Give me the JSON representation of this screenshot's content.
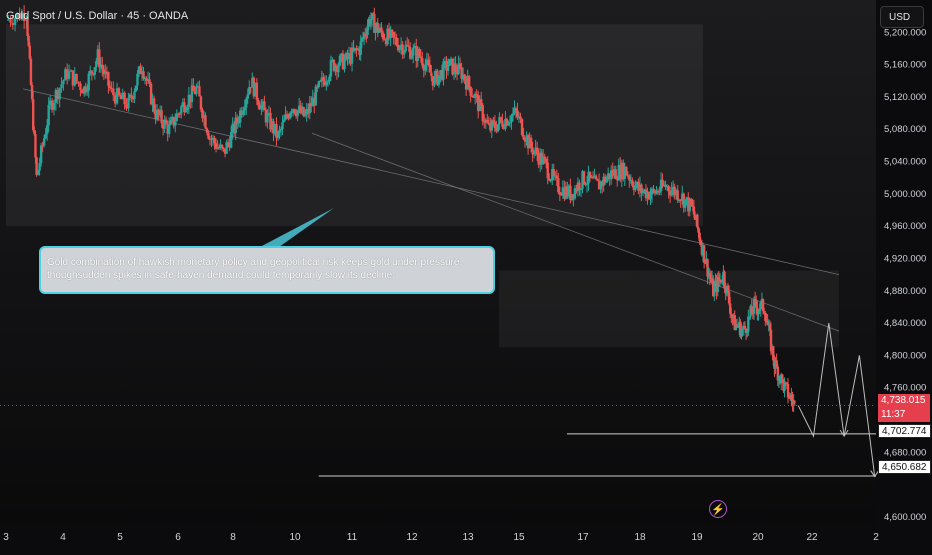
{
  "header": {
    "title": "Gold Spot / U.S. Dollar · 45 · OANDA",
    "currency_button": "USD"
  },
  "annotation": {
    "text_line1": "Gold combination of hawkish monetary policy and geopolitical risk keeps gold under pressure,",
    "text_line2": "thoughsudden spikes in safe-haven demand could temporarily slow its decline."
  },
  "price_badges": {
    "current_price": "4,738.015",
    "countdown": "11:37",
    "target_1": "4,702.774",
    "target_2": "4,650.682"
  },
  "colors": {
    "up": "#26a69a",
    "down": "#ef5350",
    "current_badge": "#e53f4e",
    "annotation_border": "#4dd0e1",
    "event_icon": "#b24fc9"
  },
  "icons": {
    "event": "lightning-icon"
  },
  "chart_data": {
    "type": "candlestick",
    "title": "Gold Spot / U.S. Dollar · 45 · OANDA",
    "y_axis": {
      "ticks": [
        5200,
        5160,
        5120,
        5080,
        5040,
        5000,
        4960,
        4920,
        4880,
        4840,
        4800,
        4760,
        4680,
        4600
      ],
      "tick_labels": [
        "5,200.000",
        "5,160.000",
        "5,120.000",
        "5,080.000",
        "5,040.000",
        "5,000.000",
        "4,960.000",
        "4,920.000",
        "4,880.000",
        "4,840.000",
        "4,800.000",
        "4,760.000",
        "4,680.000",
        "4,600.000"
      ],
      "range": [
        4590,
        5240
      ]
    },
    "x_axis": {
      "ticks": [
        "3",
        "4",
        "5",
        "6",
        "8",
        "10",
        "11",
        "12",
        "13",
        "15",
        "17",
        "18",
        "19",
        "20",
        "22",
        "2"
      ]
    },
    "price_path": [
      [
        0.0,
        5215
      ],
      [
        0.6,
        5225
      ],
      [
        0.9,
        5020
      ],
      [
        1.3,
        5110
      ],
      [
        1.8,
        5150
      ],
      [
        2.3,
        5130
      ],
      [
        2.7,
        5170
      ],
      [
        3.1,
        5125
      ],
      [
        3.6,
        5110
      ],
      [
        4.0,
        5160
      ],
      [
        4.4,
        5100
      ],
      [
        4.8,
        5080
      ],
      [
        5.2,
        5110
      ],
      [
        5.6,
        5130
      ],
      [
        6.0,
        5070
      ],
      [
        6.4,
        5050
      ],
      [
        6.8,
        5090
      ],
      [
        7.2,
        5140
      ],
      [
        7.6,
        5100
      ],
      [
        8.0,
        5070
      ],
      [
        8.4,
        5110
      ],
      [
        8.8,
        5095
      ],
      [
        9.2,
        5130
      ],
      [
        9.6,
        5160
      ],
      [
        10.0,
        5165
      ],
      [
        10.4,
        5180
      ],
      [
        10.7,
        5218
      ],
      [
        11.0,
        5200
      ],
      [
        11.4,
        5190
      ],
      [
        11.8,
        5180
      ],
      [
        12.2,
        5170
      ],
      [
        12.6,
        5140
      ],
      [
        13.0,
        5160
      ],
      [
        13.4,
        5150
      ],
      [
        13.8,
        5120
      ],
      [
        14.2,
        5080
      ],
      [
        14.6,
        5090
      ],
      [
        15.0,
        5100
      ],
      [
        15.4,
        5060
      ],
      [
        15.8,
        5040
      ],
      [
        16.2,
        5010
      ],
      [
        16.6,
        5000
      ],
      [
        17.0,
        5020
      ],
      [
        17.4,
        5010
      ],
      [
        17.8,
        5025
      ],
      [
        18.2,
        5030
      ],
      [
        18.6,
        5005
      ],
      [
        19.0,
        5000
      ],
      [
        19.4,
        5010
      ],
      [
        19.8,
        5000
      ],
      [
        20.2,
        4980
      ],
      [
        20.5,
        4930
      ],
      [
        20.8,
        4880
      ],
      [
        21.1,
        4900
      ],
      [
        21.4,
        4840
      ],
      [
        21.7,
        4830
      ],
      [
        22.0,
        4860
      ],
      [
        22.3,
        4860
      ],
      [
        22.6,
        4790
      ],
      [
        22.9,
        4760
      ],
      [
        23.2,
        4738
      ]
    ],
    "last_price": 4738.015,
    "target_levels": [
      4702.774,
      4650.682
    ],
    "zones": [
      {
        "name": "upper range",
        "y_top": 5210,
        "y_bottom": 4960
      },
      {
        "name": "breakdown box",
        "y_top": 4905,
        "y_bottom": 4810
      }
    ],
    "trendlines": [
      {
        "name": "upper trendline",
        "from": [
          5130,
          0.5
        ],
        "to": [
          4900,
          24.5
        ]
      },
      {
        "name": "lower trendline",
        "from": [
          5075,
          9.0
        ],
        "to": [
          4830,
          24.5
        ]
      }
    ],
    "projected_path": [
      4738,
      4700,
      4840,
      4700,
      4800,
      4650
    ],
    "grid": false
  }
}
